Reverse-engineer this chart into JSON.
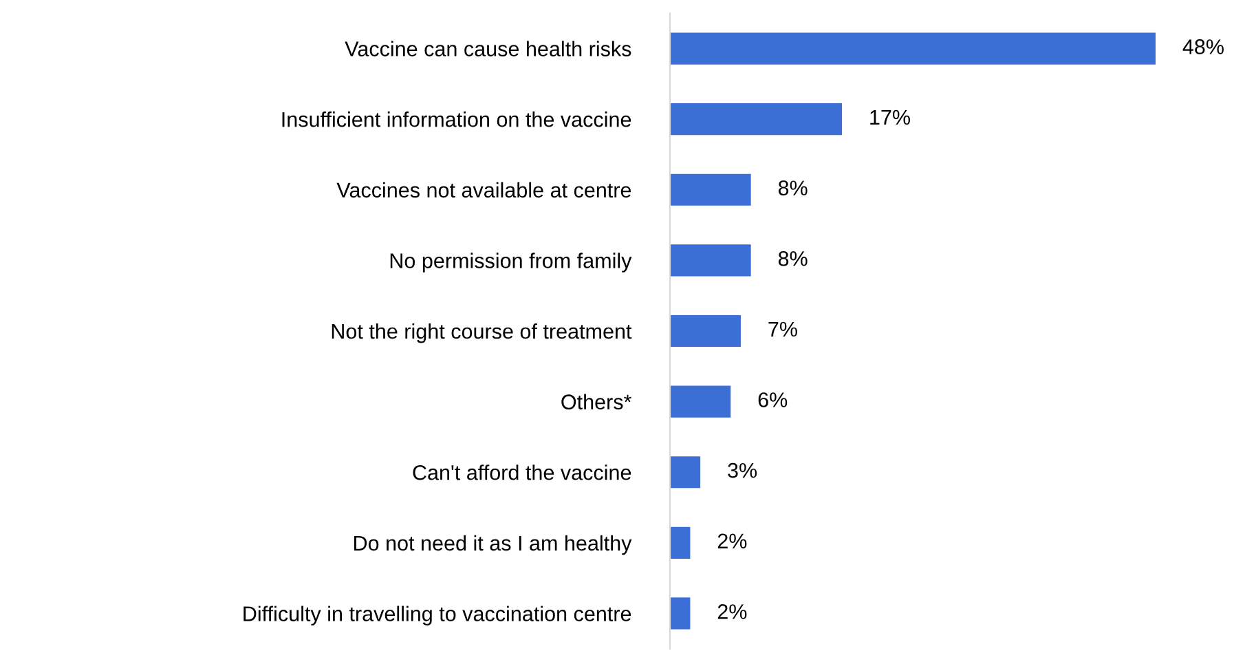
{
  "chart_data": {
    "type": "bar",
    "orientation": "horizontal",
    "categories": [
      "Vaccine can cause health risks",
      "Insufficient information on the vaccine",
      "Vaccines not available at centre",
      "No permission from family",
      "Not the right course of treatment",
      "Others*",
      "Can't afford the vaccine",
      "Do not need it as I am healthy",
      "Difficulty in travelling to vaccination centre"
    ],
    "values": [
      48,
      17,
      8,
      8,
      7,
      6,
      3,
      2,
      2
    ],
    "value_labels": [
      "48%",
      "17%",
      "8%",
      "8%",
      "7%",
      "6%",
      "3%",
      "2%",
      "2%"
    ],
    "color": "#3b6fd6",
    "grid": false,
    "legend": false
  }
}
